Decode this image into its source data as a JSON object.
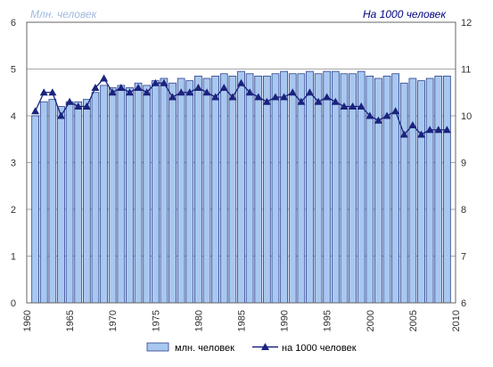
{
  "chart_data": {
    "type": "bar+line",
    "title": "",
    "left_unit_label": "Млн. человек",
    "right_unit_label": "На 1000 человек",
    "colors": {
      "bar_fill": "#a8c8f0",
      "bar_stroke": "#2a3f8c",
      "line": "#1a237e",
      "marker": "#1a237e",
      "grid": "#8a8a8a",
      "left_label_text": "#a0b8e0",
      "right_label_text": "#000080"
    },
    "y_left": {
      "min": 0,
      "max": 6,
      "ticks": [
        "0",
        "1",
        "2",
        "3",
        "4",
        "5",
        "6"
      ]
    },
    "y_right": {
      "min": 6,
      "max": 12,
      "ticks": [
        "6",
        "7",
        "8",
        "9",
        "10",
        "11",
        "12"
      ]
    },
    "x_tick_labels": [
      "1960",
      "1965",
      "1970",
      "1975",
      "1980",
      "1985",
      "1990",
      "1995",
      "2000",
      "2005",
      "2010"
    ],
    "grid": true,
    "legend_position": "bottom",
    "years": [
      1961,
      1962,
      1963,
      1964,
      1965,
      1966,
      1967,
      1968,
      1969,
      1970,
      1971,
      1972,
      1973,
      1974,
      1975,
      1976,
      1977,
      1978,
      1979,
      1980,
      1981,
      1982,
      1983,
      1984,
      1985,
      1986,
      1987,
      1988,
      1989,
      1990,
      1991,
      1992,
      1993,
      1994,
      1995,
      1996,
      1997,
      1998,
      1999,
      2000,
      2001,
      2002,
      2003,
      2004,
      2005,
      2006,
      2007,
      2008,
      2009
    ],
    "series": [
      {
        "name": "млн. человек",
        "type": "bar",
        "axis": "left",
        "values": [
          4.0,
          4.3,
          4.35,
          4.2,
          4.3,
          4.3,
          4.35,
          4.5,
          4.65,
          4.6,
          4.65,
          4.6,
          4.7,
          4.65,
          4.75,
          4.8,
          4.7,
          4.8,
          4.75,
          4.85,
          4.8,
          4.85,
          4.9,
          4.85,
          4.95,
          4.9,
          4.85,
          4.85,
          4.9,
          4.95,
          4.9,
          4.9,
          4.95,
          4.9,
          4.95,
          4.95,
          4.9,
          4.9,
          4.95,
          4.85,
          4.8,
          4.85,
          4.9,
          4.7,
          4.8,
          4.75,
          4.8,
          4.85,
          4.85
        ]
      },
      {
        "name": "на 1000 человек",
        "type": "line",
        "axis": "right",
        "values": [
          10.1,
          10.5,
          10.5,
          10.0,
          10.3,
          10.2,
          10.2,
          10.6,
          10.8,
          10.5,
          10.6,
          10.5,
          10.6,
          10.5,
          10.7,
          10.7,
          10.4,
          10.5,
          10.5,
          10.6,
          10.5,
          10.4,
          10.6,
          10.4,
          10.7,
          10.5,
          10.4,
          10.3,
          10.4,
          10.4,
          10.5,
          10.3,
          10.5,
          10.3,
          10.4,
          10.3,
          10.2,
          10.2,
          10.2,
          10.0,
          9.9,
          10.0,
          10.1,
          9.6,
          9.8,
          9.6,
          9.7,
          9.7,
          9.7
        ]
      }
    ]
  }
}
